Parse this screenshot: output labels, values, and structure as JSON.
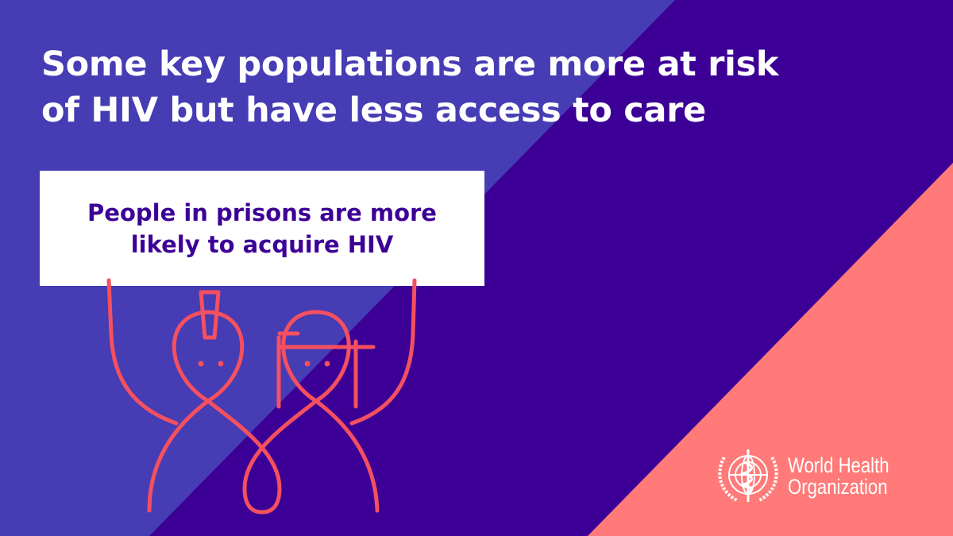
{
  "colors": {
    "background_light": "#463cb4",
    "background_dark": "#3c0096",
    "accent_coral": "#ff7a78",
    "figure_stroke": "#f5505f",
    "card_text": "#3d0096"
  },
  "headline": {
    "line1": "Some key populations are more at risk",
    "line2": "of HIV but have less access to care"
  },
  "card": {
    "line1": "People in prisons are more",
    "line2": "likely to acquire HIV"
  },
  "illustration": {
    "icon": "two-people-holding-sign-icon"
  },
  "logo": {
    "icon": "who-emblem-icon",
    "line1": "World Health",
    "line2": "Organization"
  }
}
